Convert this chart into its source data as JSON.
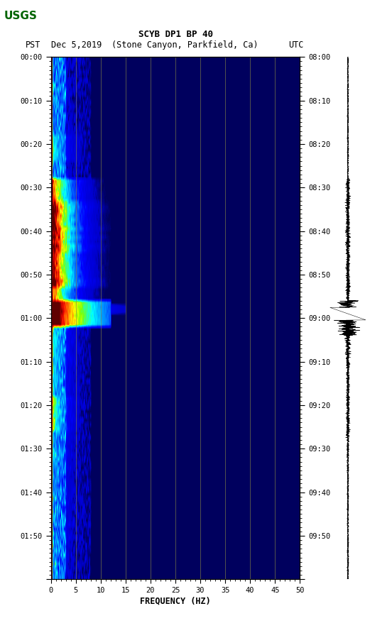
{
  "title_line1": "SCYB DP1 BP 40",
  "title_line2_pst": "PST",
  "title_line2_date": "Dec 5,2019",
  "title_line2_loc": "(Stone Canyon, Parkfield, Ca)",
  "title_line2_utc": "UTC",
  "left_time_labels": [
    "00:00",
    "00:10",
    "00:20",
    "00:30",
    "00:40",
    "00:50",
    "01:00",
    "01:10",
    "01:20",
    "01:30",
    "01:40",
    "01:50"
  ],
  "right_time_labels": [
    "08:00",
    "08:10",
    "08:20",
    "08:30",
    "08:40",
    "08:50",
    "09:00",
    "09:10",
    "09:20",
    "09:30",
    "09:40",
    "09:50"
  ],
  "freq_min": 0,
  "freq_max": 50,
  "freq_ticks": [
    0,
    5,
    10,
    15,
    20,
    25,
    30,
    35,
    40,
    45,
    50
  ],
  "freq_label": "FREQUENCY (HZ)",
  "n_time_steps": 120,
  "n_freq_steps": 500,
  "background_color": "#ffffff",
  "vertical_lines_color": "#888844",
  "vertical_lines_x": [
    5,
    10,
    15,
    20,
    25,
    30,
    35,
    40,
    45
  ],
  "usgs_color": "#006400"
}
